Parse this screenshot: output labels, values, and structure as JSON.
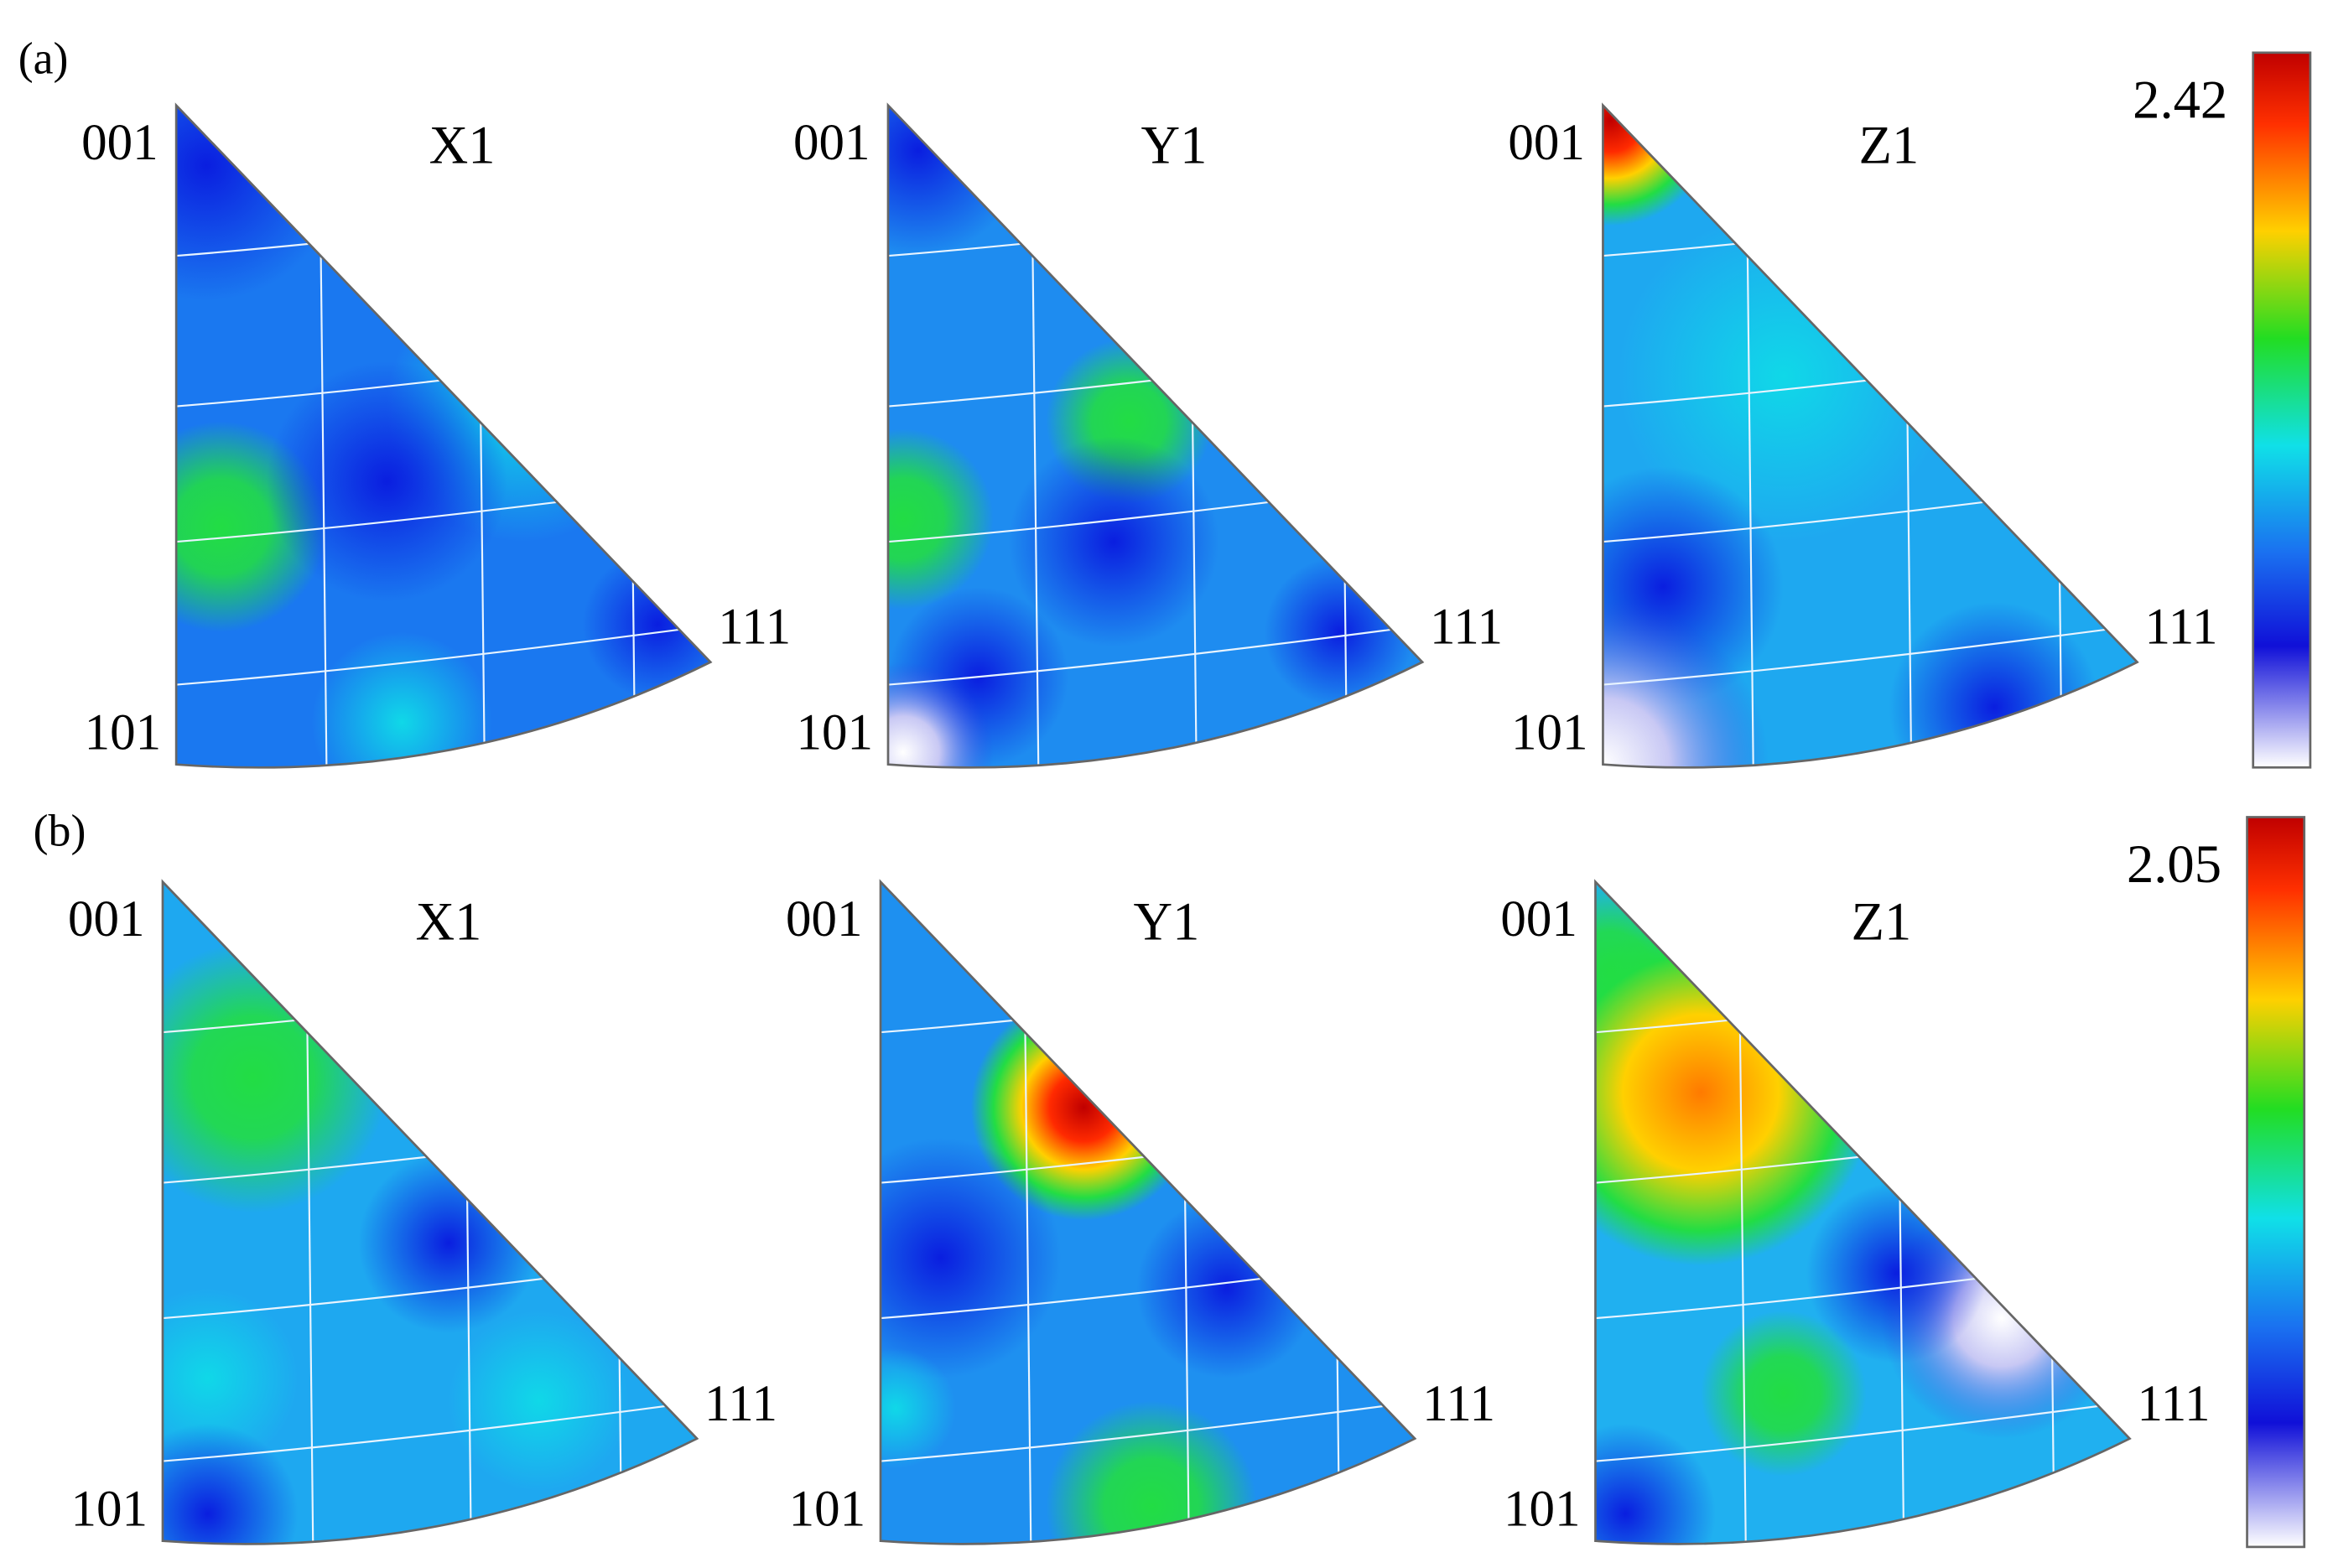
{
  "panels": [
    {
      "label": "(a)",
      "colorbar_max": 2.42,
      "plots": [
        {
          "title": "X1",
          "corners": [
            "001",
            "101",
            "111"
          ]
        },
        {
          "title": "Y1",
          "corners": [
            "001",
            "101",
            "111"
          ]
        },
        {
          "title": "Z1",
          "corners": [
            "001",
            "101",
            "111"
          ]
        }
      ]
    },
    {
      "label": "(b)",
      "colorbar_max": 2.05,
      "plots": [
        {
          "title": "X1",
          "corners": [
            "001",
            "101",
            "111"
          ]
        },
        {
          "title": "Y1",
          "corners": [
            "001",
            "101",
            "111"
          ]
        },
        {
          "title": "Z1",
          "corners": [
            "001",
            "101",
            "111"
          ]
        }
      ]
    }
  ]
}
